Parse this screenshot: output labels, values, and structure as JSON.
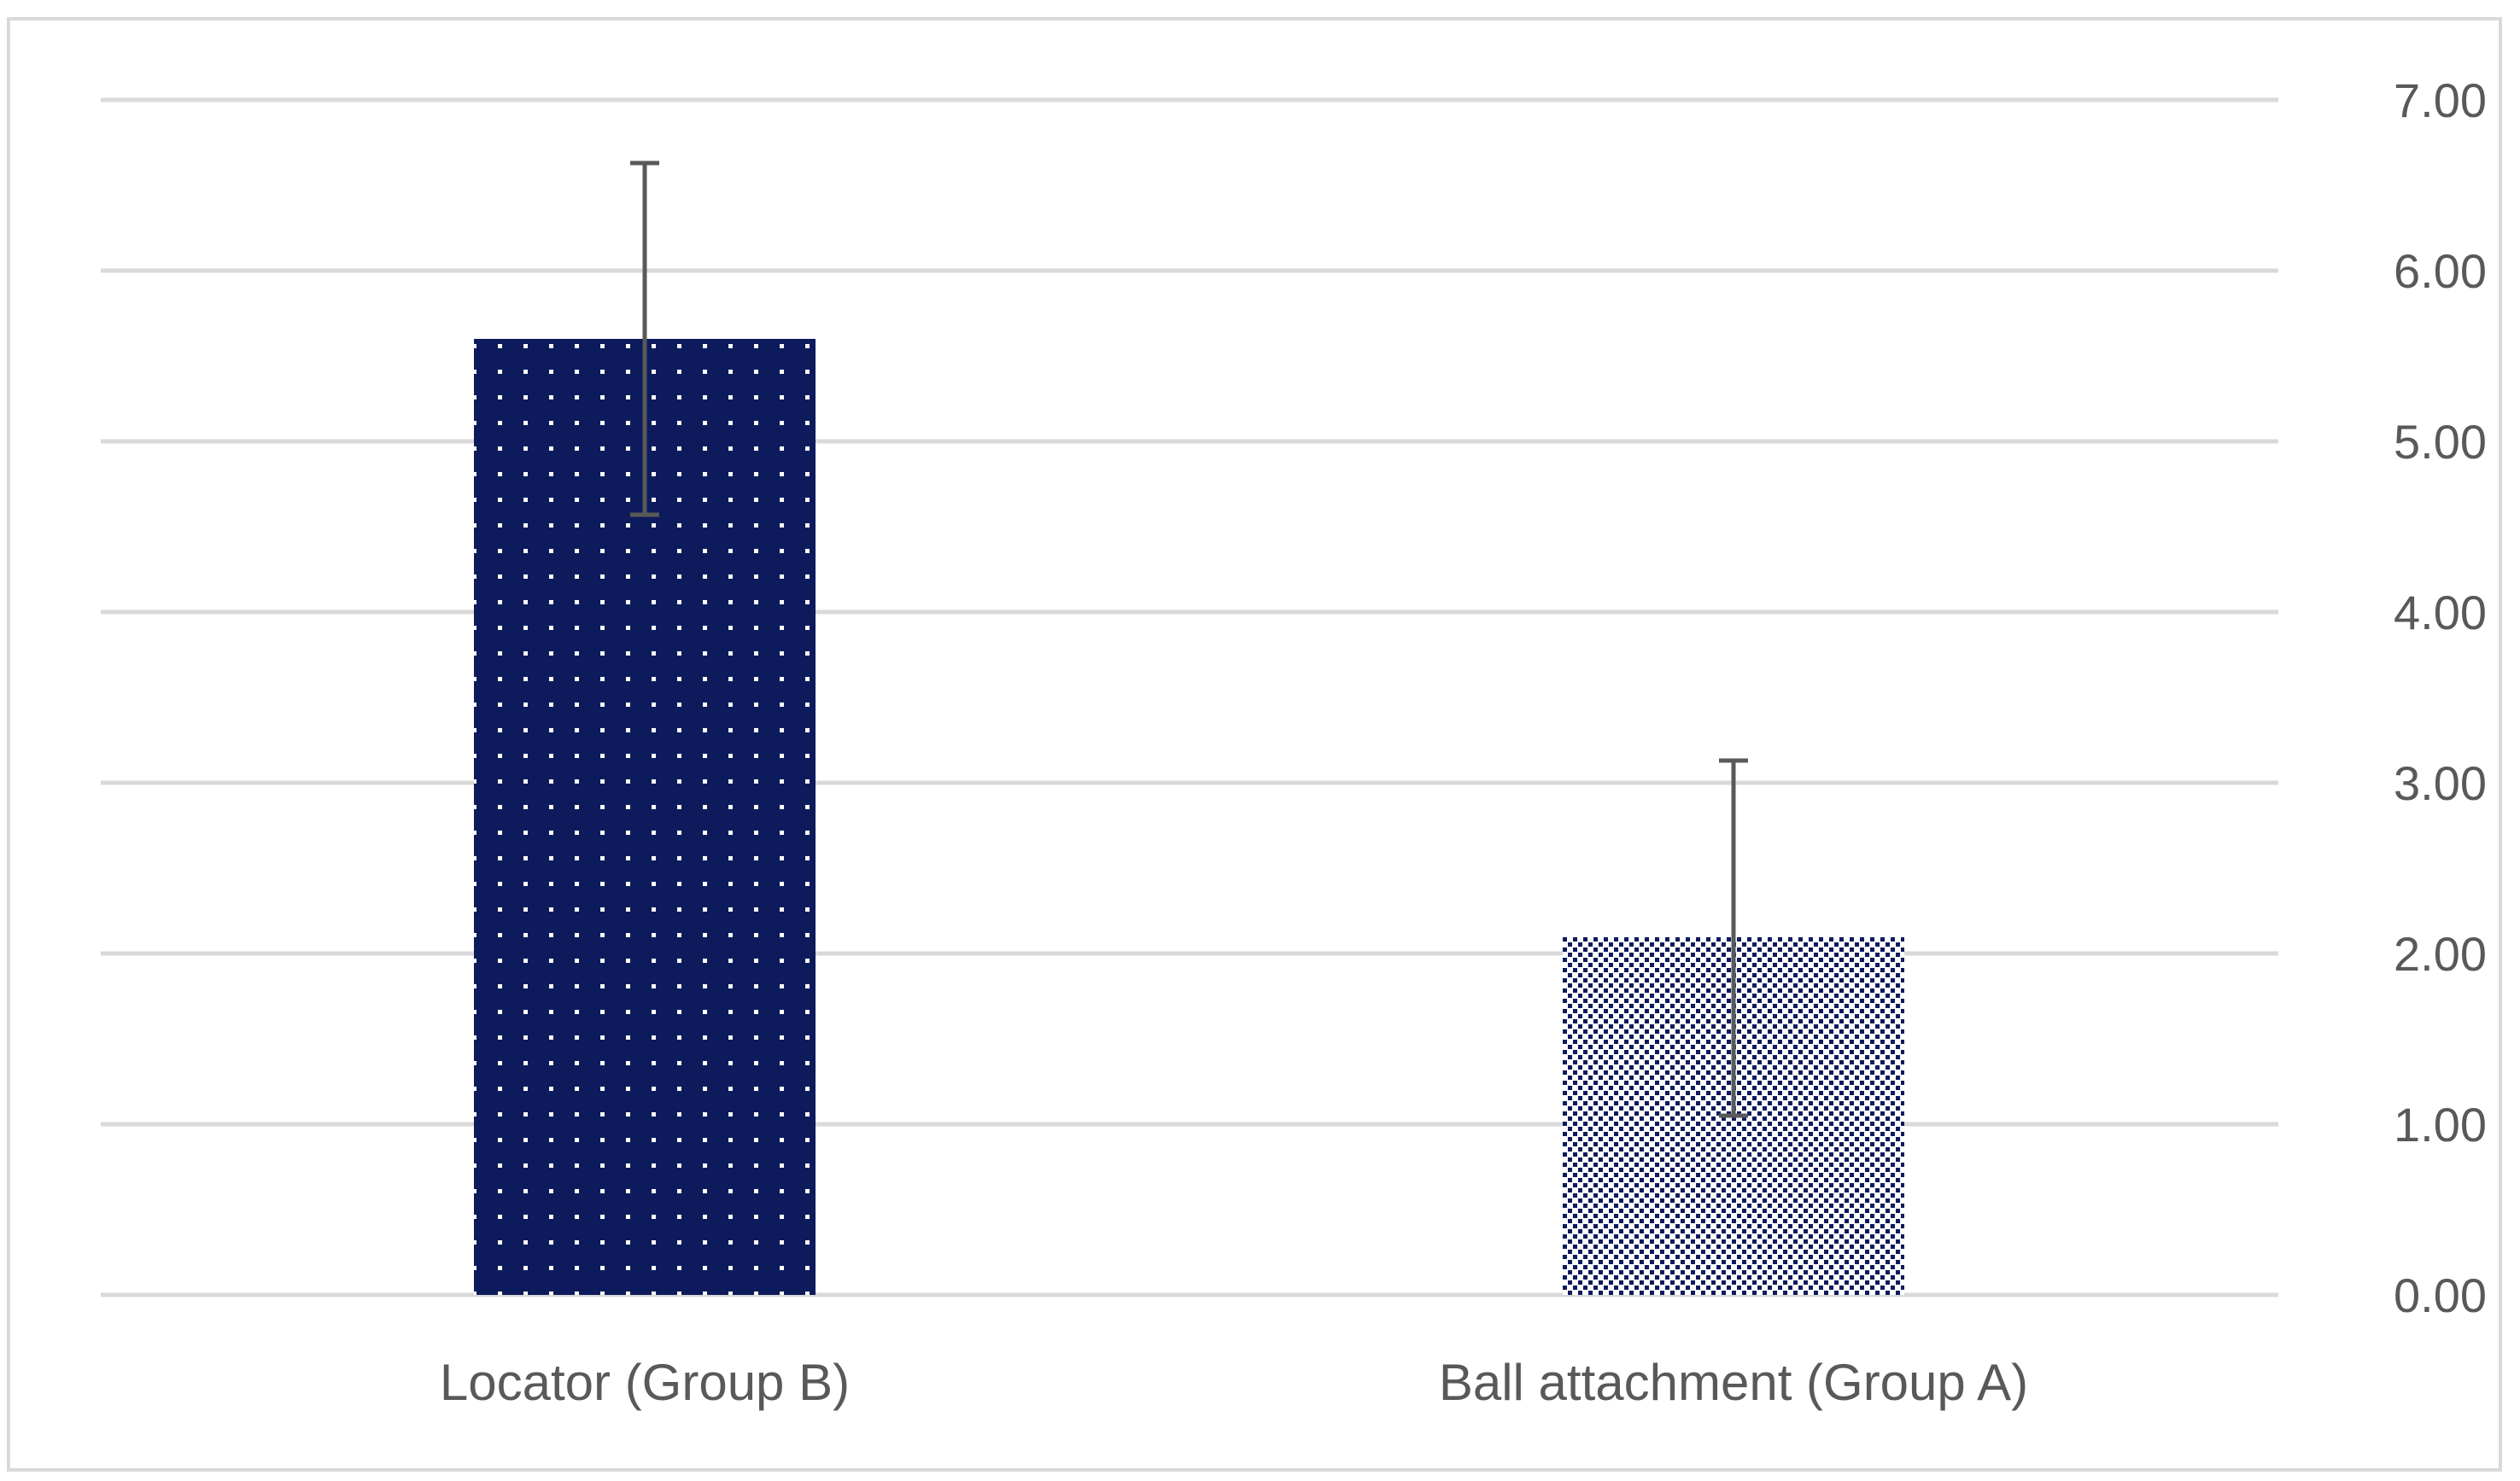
{
  "chart_data": {
    "type": "bar",
    "categories": [
      "Locator (Group B)",
      "Ball attachment (Group A)"
    ],
    "values": [
      5.6,
      2.1
    ],
    "error_bars": {
      "upper": [
        6.63,
        3.13
      ],
      "lower": [
        4.57,
        1.05
      ]
    },
    "ylim": [
      0,
      7
    ],
    "y_ticks": [
      "0.00",
      "1.00",
      "2.00",
      "3.00",
      "4.00",
      "5.00",
      "6.00",
      "7.00"
    ],
    "y_axis_side": "right",
    "grid": true,
    "legend": "none",
    "title": "",
    "xlabel": "",
    "ylabel": "",
    "colors": {
      "bar_locator": "#0d1b5c",
      "bar_ball": "#0d1b5c",
      "pattern_dots": "#ffffff",
      "gridline": "#d9d9d9",
      "error_bar": "#595959",
      "tick_text": "#595959",
      "frame": "#d9d9d9"
    }
  }
}
